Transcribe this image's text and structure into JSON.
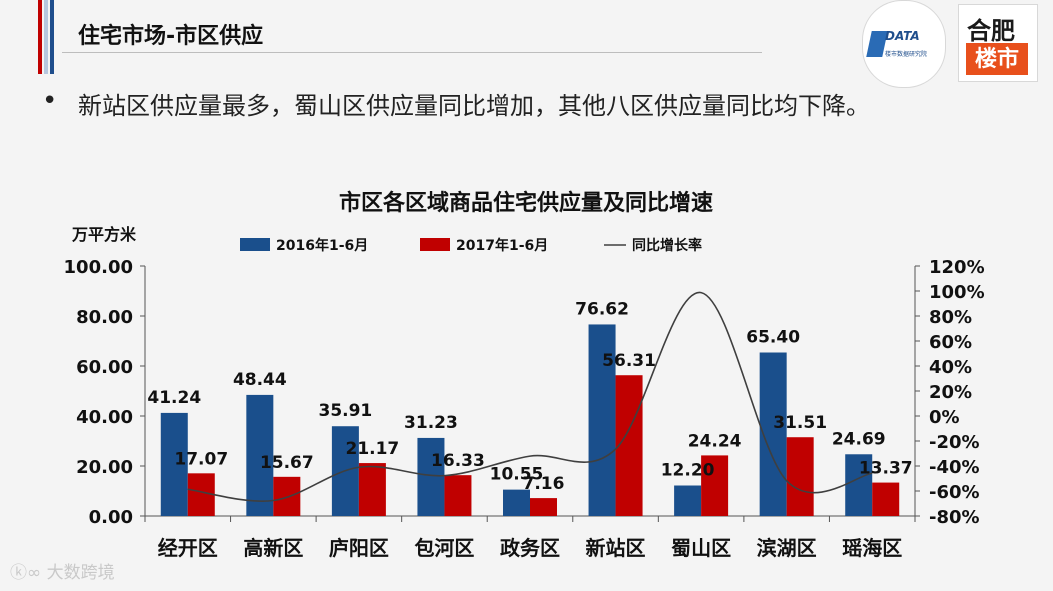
{
  "slide": {
    "title": "住宅市场-市区供应",
    "bullet": "新站区供应量最多，蜀山区供应量同比增加，其他八区供应量同比均下降。",
    "logo_data_brand": "DATA",
    "logo_data_sub": "楼市数据研究院",
    "logo_city_top": "合肥",
    "logo_city_bottom": "楼市",
    "watermark": "大数跨境"
  },
  "colors": {
    "series_2016": "#1a4f8c",
    "series_2017": "#c00000",
    "growth_line": "#3f3f3f"
  },
  "chart_data": {
    "type": "bar",
    "title": "市区各区域商品住宅供应量及同比增速",
    "ylabel": "万平方米",
    "categories": [
      "经开区",
      "高新区",
      "庐阳区",
      "包河区",
      "政务区",
      "新站区",
      "蜀山区",
      "滨湖区",
      "瑶海区"
    ],
    "series": [
      {
        "name": "2016年1-6月",
        "values": [
          41.24,
          48.44,
          35.91,
          31.23,
          10.55,
          76.62,
          12.2,
          65.4,
          24.69
        ]
      },
      {
        "name": "2017年1-6月",
        "values": [
          17.07,
          15.67,
          21.17,
          16.33,
          7.16,
          56.31,
          24.24,
          31.51,
          13.37
        ]
      }
    ],
    "line_series": {
      "name": "同比增长率",
      "values": [
        -58.6,
        -67.6,
        -41.0,
        -47.7,
        -32.1,
        -26.5,
        98.7,
        -51.8,
        -45.8
      ]
    },
    "ylim": [
      0,
      100
    ],
    "yticks": [
      "100.00",
      "80.00",
      "60.00",
      "40.00",
      "20.00",
      "0.00"
    ],
    "y2lim": [
      -80,
      120
    ],
    "y2ticks": [
      "120%",
      "100%",
      "80%",
      "60%",
      "40%",
      "20%",
      "0%",
      "-20%",
      "-40%",
      "-60%",
      "-80%"
    ],
    "data_labels_2016": [
      "41.24",
      "48.44",
      "35.91",
      "31.23",
      "10.55",
      "76.62",
      "12.20",
      "65.40",
      "24.69"
    ],
    "data_labels_2017": [
      "17.07",
      "15.67",
      "21.17",
      "16.33",
      "7.16",
      "56.31",
      "24.24",
      "31.51",
      "13.37"
    ],
    "legend_position": "top",
    "grid": false
  }
}
